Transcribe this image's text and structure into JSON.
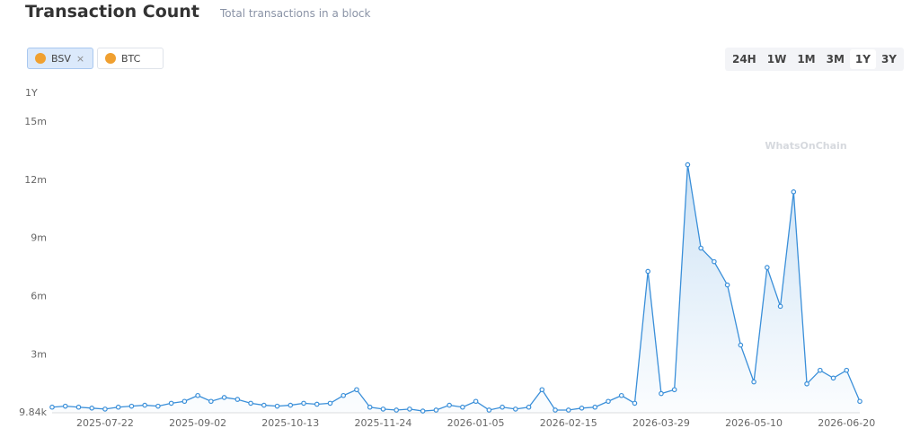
{
  "header": {
    "title": "Transaction Count",
    "subtitle": "Total transactions in a block"
  },
  "chips": [
    "BSV",
    "BTC"
  ],
  "ranges": {
    "options": [
      "24H",
      "1W",
      "1M",
      "3M",
      "1Y",
      "3Y"
    ],
    "selected": 4
  },
  "watermark": "WhatsOnChain",
  "chart_data": {
    "type": "line",
    "range_label": "1Y",
    "categories": [
      null,
      null,
      null,
      null,
      "2025-07-22",
      null,
      null,
      null,
      null,
      null,
      null,
      "2025-09-02",
      null,
      null,
      null,
      null,
      null,
      null,
      "2025-10-13",
      null,
      null,
      null,
      null,
      null,
      null,
      "2025-11-24",
      null,
      null,
      null,
      null,
      null,
      null,
      "2026-01-05",
      null,
      null,
      null,
      null,
      null,
      null,
      "2026-02-15",
      null,
      null,
      null,
      null,
      null,
      null,
      "2026-03-29",
      null,
      null,
      null,
      null,
      null,
      null,
      "2026-05-10",
      null,
      null,
      null,
      null,
      null,
      null,
      "2026-06-20",
      null
    ],
    "series": [
      {
        "name": "BSV",
        "color": "#3a8fd9",
        "values": [
          300000,
          350000,
          300000,
          250000,
          200000,
          300000,
          350000,
          400000,
          350000,
          500000,
          600000,
          900000,
          600000,
          800000,
          700000,
          500000,
          400000,
          350000,
          400000,
          500000,
          450000,
          500000,
          900000,
          1200000,
          300000,
          200000,
          150000,
          200000,
          100000,
          150000,
          400000,
          300000,
          600000,
          150000,
          300000,
          200000,
          300000,
          1200000,
          150000,
          150000,
          250000,
          300000,
          600000,
          900000,
          500000,
          7300000,
          1000000,
          1200000,
          12800000,
          8500000,
          7800000,
          6600000,
          3500000,
          1600000,
          7500000,
          5500000,
          11400000,
          1500000,
          2200000,
          1800000,
          2200000,
          600000
        ]
      }
    ],
    "ylim": [
      9840,
      15000000
    ],
    "yticks": [
      {
        "value": 9840,
        "label": "9.84k"
      },
      {
        "value": 3000000,
        "label": "3m"
      },
      {
        "value": 6000000,
        "label": "6m"
      },
      {
        "value": 9000000,
        "label": "9m"
      },
      {
        "value": 12000000,
        "label": "12m"
      },
      {
        "value": 15000000,
        "label": "15m"
      }
    ]
  }
}
